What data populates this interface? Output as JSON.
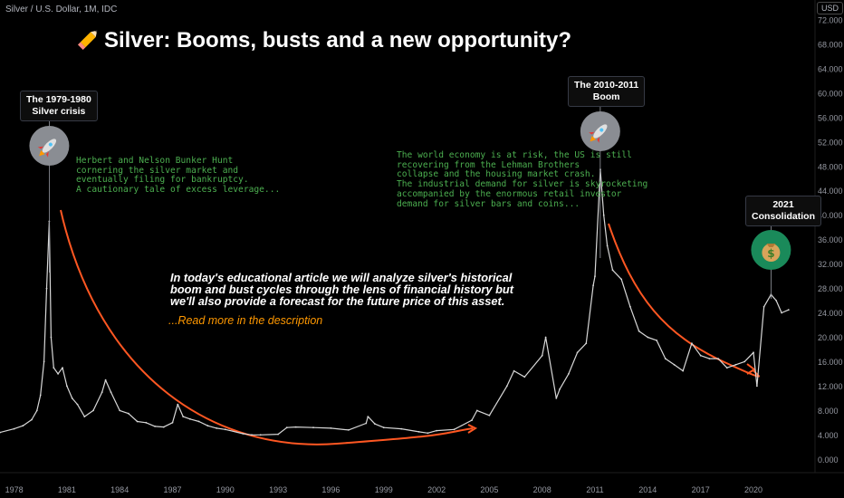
{
  "header": {
    "symbol_line": "Silver / U.S. Dollar, 1M, IDC",
    "currency": "USD"
  },
  "title": "Silver: Booms, busts and a new opportunity?",
  "icons": {
    "title": "pencil-icon",
    "boom_1980": "rocket-icon",
    "boom_2011": "rocket-icon",
    "consolidation_2021": "money-bag-icon"
  },
  "callouts": {
    "crisis_1980": [
      "The 1979-1980",
      "Silver crisis"
    ],
    "boom_2011": [
      "The 2010-2011",
      "Boom"
    ],
    "consolidation_2021": [
      "2021",
      "Consolidation"
    ]
  },
  "notes": {
    "hunt": [
      "Herbert and Nelson Bunker Hunt",
      "cornering the silver market and",
      "eventually filing for bankruptcy.",
      "A cautionary tale of excess leverage..."
    ],
    "world_economy": [
      "The world economy is at risk, the US is still",
      "recovering from the Lehman Brothers",
      "collapse and the housing market crash.",
      "The industrial demand for silver is skyrocketing",
      "accompanied by the enormous retail investor",
      "demand for silver bars and coins..."
    ]
  },
  "article": {
    "lines": [
      "In today's educational article we will analyze silver's historical",
      "boom and bust cycles through the lens of financial history but",
      "we'll also provide a forecast for the future price of this asset."
    ],
    "read_more": "...Read more in the description"
  },
  "colors": {
    "background": "#000000",
    "price": "#d8d8d8",
    "arrow": "#ff5722",
    "note_text": "#4caf50",
    "read_more": "#ff9800",
    "icon_circle_grey": "#8a8d93",
    "icon_circle_green": "#1a8a5a"
  },
  "chart_data": {
    "type": "line",
    "title": "Silver: Booms, busts and a new opportunity?",
    "xlim": [
      1977.2,
      2023.5
    ],
    "ylim": [
      -1.5,
      72
    ],
    "x_ticks": [
      "1978",
      "1981",
      "1984",
      "1987",
      "1990",
      "1993",
      "1996",
      "1999",
      "2002",
      "2005",
      "2008",
      "2011",
      "2014",
      "2017",
      "2020"
    ],
    "y_ticks": [
      "72.000",
      "68.000",
      "64.000",
      "60.000",
      "56.000",
      "52.000",
      "48.000",
      "44.000",
      "40.000",
      "36.000",
      "32.000",
      "28.000",
      "24.000",
      "20.000",
      "16.000",
      "12.000",
      "8.000",
      "4.000",
      "0.000"
    ],
    "grid": false,
    "series": [
      {
        "x": [
          1977.2,
          1978.0,
          1978.5,
          1979.0,
          1979.3,
          1979.5,
          1979.7,
          1979.85,
          1980.0,
          1980.1,
          1980.25,
          1980.5,
          1980.75,
          1981.0,
          1981.3,
          1981.6,
          1982.0,
          1982.5,
          1983.0,
          1983.2,
          1983.5,
          1984.0,
          1984.5,
          1985.0,
          1985.5,
          1986.0,
          1986.5,
          1987.0,
          1987.3,
          1987.6,
          1988.0,
          1988.5,
          1989.0,
          1989.5,
          1990.0,
          1991.0,
          1991.5,
          1992.0,
          1993.0,
          1993.5,
          1994.0,
          1995.0,
          1996.0,
          1997.0,
          1998.0,
          1998.1,
          1998.5,
          1999.0,
          2000.0,
          2001.0,
          2001.5,
          2002.0,
          2003.0,
          2004.0,
          2004.3,
          2005.0,
          2006.0,
          2006.4,
          2007.0,
          2008.0,
          2008.2,
          2008.8,
          2009.0,
          2009.5,
          2010.0,
          2010.5,
          2010.9,
          2011.0,
          2011.3,
          2011.5,
          2011.7,
          2012.0,
          2012.5,
          2013.0,
          2013.5,
          2014.0,
          2014.5,
          2015.0,
          2015.5,
          2016.0,
          2016.5,
          2017.0,
          2017.5,
          2018.0,
          2018.5,
          2019.0,
          2019.5,
          2020.0,
          2020.2,
          2020.6,
          2021.0,
          2021.3,
          2021.6,
          2022.0
        ],
        "y": [
          4.4,
          5.0,
          5.5,
          6.5,
          8.0,
          10.5,
          16.0,
          28.0,
          39.0,
          20.0,
          15.0,
          14.0,
          15.0,
          12.0,
          10.0,
          9.0,
          7.0,
          8.0,
          11.0,
          13.0,
          11.0,
          8.0,
          7.5,
          6.2,
          6.0,
          5.4,
          5.3,
          6.0,
          9.0,
          7.0,
          6.6,
          6.2,
          5.5,
          5.1,
          4.9,
          4.2,
          4.0,
          4.0,
          4.1,
          5.2,
          5.3,
          5.2,
          5.1,
          4.8,
          5.9,
          7.0,
          5.8,
          5.2,
          5.0,
          4.5,
          4.3,
          4.7,
          4.9,
          6.4,
          8.0,
          7.2,
          12.0,
          14.5,
          13.5,
          17.0,
          20.0,
          10.0,
          11.5,
          14.0,
          17.5,
          19.0,
          28.5,
          30.0,
          47.5,
          40.0,
          35.0,
          31.0,
          29.5,
          25.0,
          21.0,
          20.0,
          19.5,
          16.5,
          15.5,
          14.5,
          19.0,
          17.0,
          16.5,
          16.5,
          15.0,
          15.5,
          16.0,
          17.5,
          12.0,
          25.0,
          27.0,
          26.0,
          24.0,
          24.5
        ]
      }
    ],
    "annotations": [
      {
        "year": 1980.0,
        "label": "The 1979-1980 Silver crisis"
      },
      {
        "year": 2011.3,
        "label": "The 2010-2011 Boom"
      },
      {
        "year": 2021.0,
        "label": "2021 Consolidation"
      }
    ]
  }
}
